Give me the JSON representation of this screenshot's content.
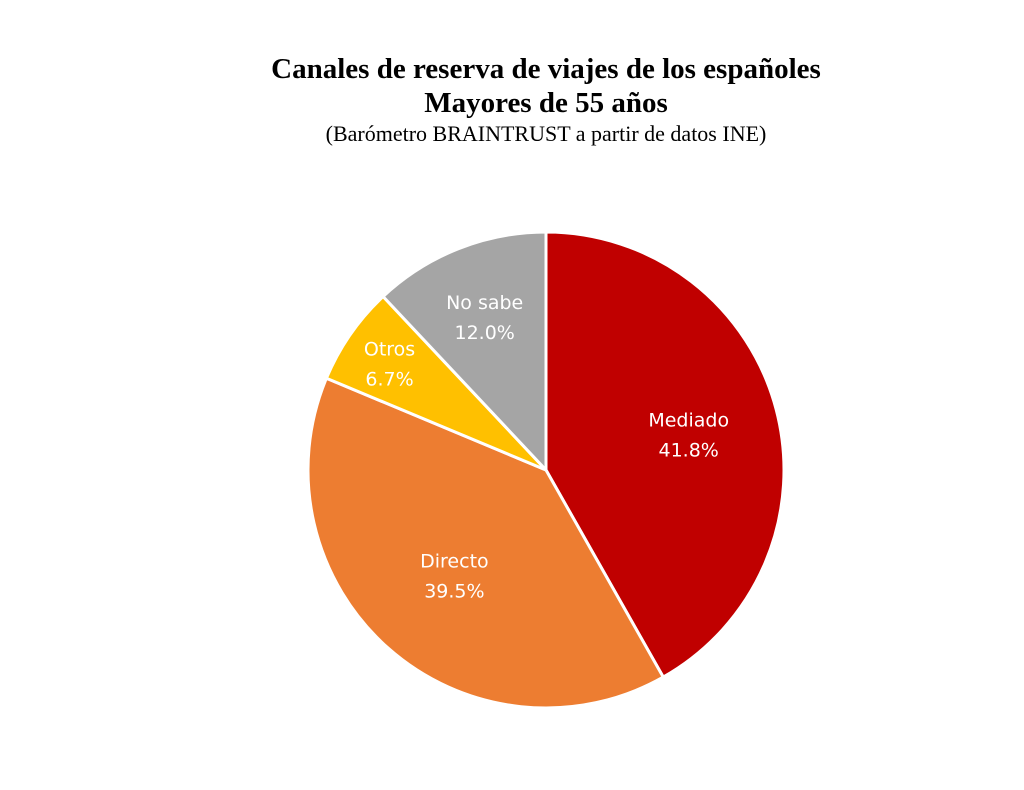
{
  "chart_data": {
    "type": "pie",
    "title": "Canales de reserva de viajes de los españoles",
    "subtitle": "Mayores de 55 años",
    "source_note": "(Barómetro BRAINTRUST a partir de datos INE)",
    "slices": [
      {
        "label": "Mediado",
        "value": 41.8,
        "value_label": "41.8%",
        "color": "#C00000"
      },
      {
        "label": "Directo",
        "value": 39.5,
        "value_label": "39.5%",
        "color": "#ED7D31"
      },
      {
        "label": "Otros",
        "value": 6.7,
        "value_label": "6.7%",
        "color": "#FFC000"
      },
      {
        "label": "No sabe",
        "value": 12.0,
        "value_label": "12.0%",
        "color": "#A5A5A5"
      }
    ],
    "start_angle_deg": 0,
    "direction": "clockwise",
    "legend": "none"
  }
}
